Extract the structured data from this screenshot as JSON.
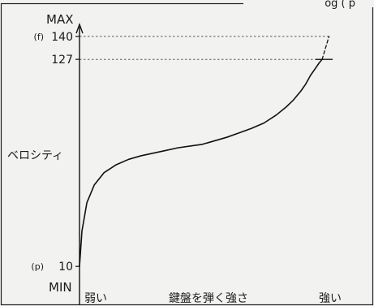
{
  "top_fragment": "og ( p",
  "chart_data": {
    "type": "line",
    "title": "",
    "xlabel": "鍵盤を弾く強さ",
    "ylabel": "ベロシティ",
    "x_min_label": "弱い",
    "x_max_label": "強い",
    "y_max_label": "MAX",
    "y_min_label": "MIN",
    "ylim": [
      0,
      150
    ],
    "xlim": [
      0,
      1
    ],
    "grid": false,
    "y_ticks": [
      {
        "value": 140,
        "prefix": "(f)",
        "label": "140"
      },
      {
        "value": 127,
        "prefix": "",
        "label": "127"
      },
      {
        "value": 10,
        "prefix": "(p)",
        "label": "10"
      }
    ],
    "series": [
      {
        "style": "solid",
        "x": [
          0.0,
          0.01,
          0.03,
          0.06,
          0.1,
          0.15,
          0.2,
          0.25,
          0.3,
          0.35,
          0.4,
          0.45,
          0.5,
          0.55,
          0.6,
          0.65,
          0.7,
          0.75,
          0.8,
          0.84,
          0.87,
          0.9,
          0.92,
          0.94,
          0.96,
          0.975,
          0.987
        ],
        "y": [
          10,
          30,
          46,
          56,
          63,
          67.5,
          70.5,
          72.5,
          74,
          75.5,
          77,
          78,
          79,
          81,
          83,
          85.5,
          88,
          91,
          95.5,
          100,
          104,
          109,
          113,
          118,
          122,
          125,
          127
        ]
      },
      {
        "style": "dashed",
        "x": [
          0.987,
          1.015
        ],
        "y": [
          127,
          140
        ]
      }
    ],
    "reference_lines": [
      {
        "y": 140,
        "x_end": 1.015,
        "style": "dotted"
      },
      {
        "y": 127,
        "x_end": 0.987,
        "style": "dotted"
      }
    ]
  }
}
